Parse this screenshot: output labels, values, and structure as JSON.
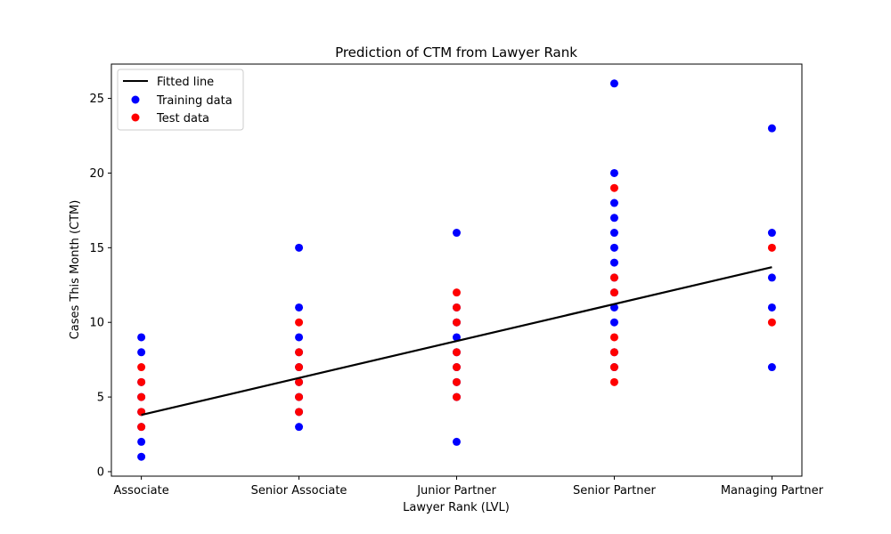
{
  "chart_data": {
    "type": "scatter",
    "title": "Prediction of CTM from Lawyer Rank",
    "xlabel": "Lawyer Rank (LVL)",
    "ylabel": "Cases This Month (CTM)",
    "categories": [
      "Associate",
      "Senior Associate",
      "Junior Partner",
      "Senior Partner",
      "Managing Partner"
    ],
    "ylim": [
      -0.3,
      27.3
    ],
    "yticks": [
      0,
      5,
      10,
      15,
      20,
      25
    ],
    "grid": false,
    "legend_position": "top-left",
    "series": [
      {
        "name": "Training data",
        "kind": "scatter",
        "color": "#0000ff",
        "points": [
          [
            0,
            1
          ],
          [
            0,
            2
          ],
          [
            0,
            3
          ],
          [
            0,
            4
          ],
          [
            0,
            5
          ],
          [
            0,
            6
          ],
          [
            0,
            8
          ],
          [
            0,
            9
          ],
          [
            1,
            3
          ],
          [
            1,
            4
          ],
          [
            1,
            5
          ],
          [
            1,
            6
          ],
          [
            1,
            7
          ],
          [
            1,
            8
          ],
          [
            1,
            9
          ],
          [
            1,
            11
          ],
          [
            1,
            15
          ],
          [
            2,
            2
          ],
          [
            2,
            5
          ],
          [
            2,
            6
          ],
          [
            2,
            7
          ],
          [
            2,
            8
          ],
          [
            2,
            9
          ],
          [
            2,
            10
          ],
          [
            2,
            11
          ],
          [
            2,
            16
          ],
          [
            3,
            7
          ],
          [
            3,
            8
          ],
          [
            3,
            10
          ],
          [
            3,
            11
          ],
          [
            3,
            12
          ],
          [
            3,
            13
          ],
          [
            3,
            14
          ],
          [
            3,
            15
          ],
          [
            3,
            16
          ],
          [
            3,
            17
          ],
          [
            3,
            18
          ],
          [
            3,
            20
          ],
          [
            3,
            26
          ],
          [
            4,
            7
          ],
          [
            4,
            11
          ],
          [
            4,
            13
          ],
          [
            4,
            16
          ],
          [
            4,
            23
          ]
        ]
      },
      {
        "name": "Test data",
        "kind": "scatter",
        "color": "#ff0000",
        "points": [
          [
            0,
            3
          ],
          [
            0,
            4
          ],
          [
            0,
            5
          ],
          [
            0,
            6
          ],
          [
            0,
            7
          ],
          [
            1,
            4
          ],
          [
            1,
            5
          ],
          [
            1,
            6
          ],
          [
            1,
            7
          ],
          [
            1,
            8
          ],
          [
            1,
            10
          ],
          [
            2,
            5
          ],
          [
            2,
            6
          ],
          [
            2,
            7
          ],
          [
            2,
            8
          ],
          [
            2,
            10
          ],
          [
            2,
            11
          ],
          [
            2,
            12
          ],
          [
            3,
            6
          ],
          [
            3,
            7
          ],
          [
            3,
            8
          ],
          [
            3,
            9
          ],
          [
            3,
            12
          ],
          [
            3,
            13
          ],
          [
            3,
            19
          ],
          [
            4,
            10
          ],
          [
            4,
            15
          ]
        ]
      },
      {
        "name": "Fitted line",
        "kind": "line",
        "color": "#000000",
        "points": [
          [
            0,
            3.8
          ],
          [
            4,
            13.7
          ]
        ]
      }
    ],
    "legend": [
      "Fitted line",
      "Training data",
      "Test data"
    ]
  }
}
